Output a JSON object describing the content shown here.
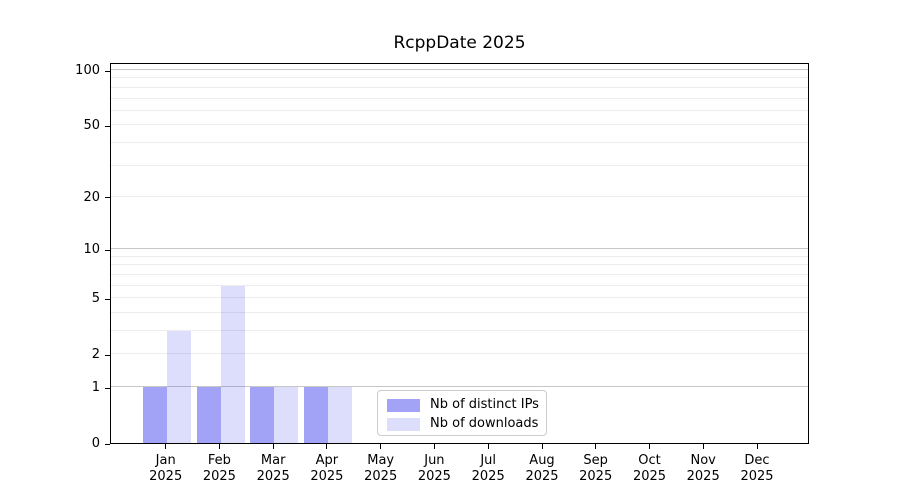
{
  "chart_data": {
    "type": "bar",
    "title": "RcppDate 2025",
    "categories": [
      "Jan 2025",
      "Feb 2025",
      "Mar 2025",
      "Apr 2025",
      "May 2025",
      "Jun 2025",
      "Jul 2025",
      "Aug 2025",
      "Sep 2025",
      "Oct 2025",
      "Nov 2025",
      "Dec 2025"
    ],
    "x_tick_line1": [
      "Jan",
      "Feb",
      "Mar",
      "Apr",
      "May",
      "Jun",
      "Jul",
      "Aug",
      "Sep",
      "Oct",
      "Nov",
      "Dec"
    ],
    "x_tick_line2": "2025",
    "series": [
      {
        "name": "Nb of distinct IPs",
        "color": "rgba(85,85,238,0.55)",
        "values": [
          1,
          1,
          1,
          1,
          0,
          0,
          0,
          0,
          0,
          0,
          0,
          0
        ]
      },
      {
        "name": "Nb of downloads",
        "color": "rgba(85,85,238,0.20)",
        "values": [
          3,
          6,
          1,
          1,
          0,
          0,
          0,
          0,
          0,
          0,
          0,
          0
        ]
      }
    ],
    "y_axis": {
      "scale": "log1p",
      "tick_values": [
        0,
        1,
        2,
        5,
        10,
        20,
        50,
        100
      ],
      "tick_labels": [
        "0",
        "1",
        "2",
        "5",
        "10",
        "20",
        "50",
        "100"
      ],
      "range_top": 110
    },
    "grid": {
      "on": true,
      "minor_values": [
        2,
        3,
        4,
        5,
        6,
        7,
        8,
        9,
        20,
        30,
        40,
        50,
        60,
        70,
        80,
        90
      ],
      "major_values": [
        1,
        10,
        100
      ],
      "minor_color": "#ececec",
      "major_color": "#c6c6c6"
    },
    "legend": {
      "position": "bottom-center",
      "border_color": "#cccccc"
    }
  }
}
